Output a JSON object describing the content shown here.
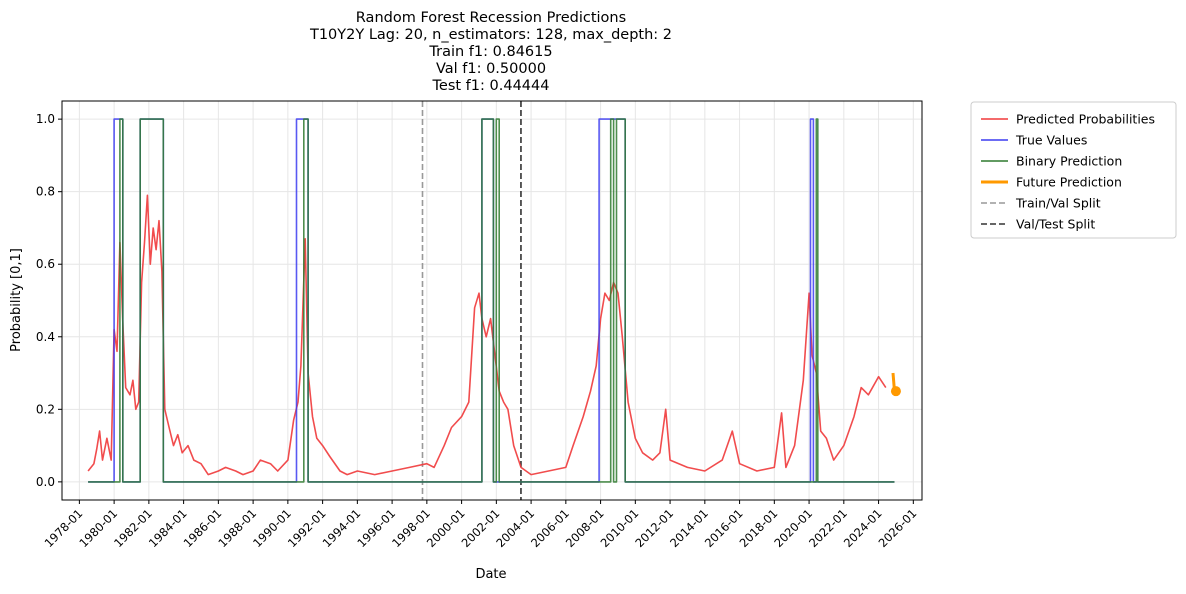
{
  "chart_data": {
    "type": "line",
    "title_lines": [
      "Random Forest Recession Predictions",
      "T10Y2Y Lag: 20, n_estimators: 128, max_depth: 2",
      "Train f1: 0.84615",
      "Val f1: 0.50000",
      "Test f1: 0.44444"
    ],
    "xlabel": "Date",
    "ylabel": "Probability [0,1]",
    "x_ticks": [
      "1978-01",
      "1980-01",
      "1982-01",
      "1984-01",
      "1986-01",
      "1988-01",
      "1990-01",
      "1992-01",
      "1994-01",
      "1996-01",
      "1998-01",
      "2000-01",
      "2002-01",
      "2004-01",
      "2006-01",
      "2008-01",
      "2010-01",
      "2012-01",
      "2014-01",
      "2016-01",
      "2018-01",
      "2020-01",
      "2022-01",
      "2024-01",
      "2026-01"
    ],
    "y_ticks": [
      "0.0",
      "0.2",
      "0.4",
      "0.6",
      "0.8",
      "1.0"
    ],
    "xlim": [
      "1977-01",
      "2026-07"
    ],
    "ylim": [
      -0.05,
      1.05
    ],
    "grid": true,
    "legend_position": "outside-upper-right",
    "legend": [
      {
        "label": "Predicted Probabilities",
        "color": "#f0393a",
        "style": "solid"
      },
      {
        "label": "True Values",
        "color": "#3c3cf0",
        "style": "solid"
      },
      {
        "label": "Binary Prediction",
        "color": "#2f7a2f",
        "style": "solid"
      },
      {
        "label": "Future Prediction",
        "color": "#ff9900",
        "style": "thick"
      },
      {
        "label": "Train/Val Split",
        "color": "#999999",
        "style": "dashed"
      },
      {
        "label": "Val/Test Split",
        "color": "#333333",
        "style": "dashed"
      }
    ],
    "splits": [
      {
        "name": "Train/Val Split",
        "x": "1997-10",
        "color": "#999999"
      },
      {
        "name": "Val/Test Split",
        "x": "2003-06",
        "color": "#333333"
      }
    ],
    "series": [
      {
        "name": "Predicted Probabilities",
        "color": "#f0393a",
        "points": [
          [
            "1978-07",
            0.03
          ],
          [
            "1978-11",
            0.05
          ],
          [
            "1979-01",
            0.09
          ],
          [
            "1979-03",
            0.14
          ],
          [
            "1979-05",
            0.06
          ],
          [
            "1979-08",
            0.12
          ],
          [
            "1979-11",
            0.06
          ],
          [
            "1980-01",
            0.42
          ],
          [
            "1980-03",
            0.36
          ],
          [
            "1980-05",
            0.66
          ],
          [
            "1980-07",
            0.44
          ],
          [
            "1980-09",
            0.26
          ],
          [
            "1980-12",
            0.24
          ],
          [
            "1981-02",
            0.28
          ],
          [
            "1981-04",
            0.2
          ],
          [
            "1981-06",
            0.22
          ],
          [
            "1981-08",
            0.55
          ],
          [
            "1981-10",
            0.66
          ],
          [
            "1981-12",
            0.79
          ],
          [
            "1982-02",
            0.6
          ],
          [
            "1982-04",
            0.7
          ],
          [
            "1982-06",
            0.64
          ],
          [
            "1982-08",
            0.72
          ],
          [
            "1982-10",
            0.58
          ],
          [
            "1982-12",
            0.2
          ],
          [
            "1983-03",
            0.15
          ],
          [
            "1983-06",
            0.1
          ],
          [
            "1983-09",
            0.13
          ],
          [
            "1983-12",
            0.08
          ],
          [
            "1984-04",
            0.1
          ],
          [
            "1984-08",
            0.06
          ],
          [
            "1985-01",
            0.05
          ],
          [
            "1985-06",
            0.02
          ],
          [
            "1986-01",
            0.03
          ],
          [
            "1986-06",
            0.04
          ],
          [
            "1987-01",
            0.03
          ],
          [
            "1987-06",
            0.02
          ],
          [
            "1988-01",
            0.03
          ],
          [
            "1988-06",
            0.06
          ],
          [
            "1989-01",
            0.05
          ],
          [
            "1989-06",
            0.03
          ],
          [
            "1990-01",
            0.06
          ],
          [
            "1990-05",
            0.17
          ],
          [
            "1990-08",
            0.22
          ],
          [
            "1990-10",
            0.32
          ],
          [
            "1991-01",
            0.67
          ],
          [
            "1991-03",
            0.3
          ],
          [
            "1991-06",
            0.18
          ],
          [
            "1991-09",
            0.12
          ],
          [
            "1992-01",
            0.1
          ],
          [
            "1992-06",
            0.07
          ],
          [
            "1993-01",
            0.03
          ],
          [
            "1993-06",
            0.02
          ],
          [
            "1994-01",
            0.03
          ],
          [
            "1995-01",
            0.02
          ],
          [
            "1996-01",
            0.03
          ],
          [
            "1997-01",
            0.04
          ],
          [
            "1998-01",
            0.05
          ],
          [
            "1998-06",
            0.04
          ],
          [
            "1999-01",
            0.1
          ],
          [
            "1999-06",
            0.15
          ],
          [
            "2000-01",
            0.18
          ],
          [
            "2000-06",
            0.22
          ],
          [
            "2000-10",
            0.48
          ],
          [
            "2001-01",
            0.52
          ],
          [
            "2001-03",
            0.45
          ],
          [
            "2001-06",
            0.4
          ],
          [
            "2001-09",
            0.45
          ],
          [
            "2001-12",
            0.35
          ],
          [
            "2002-03",
            0.25
          ],
          [
            "2002-06",
            0.22
          ],
          [
            "2002-09",
            0.2
          ],
          [
            "2003-01",
            0.1
          ],
          [
            "2003-06",
            0.04
          ],
          [
            "2004-01",
            0.02
          ],
          [
            "2005-01",
            0.03
          ],
          [
            "2006-01",
            0.04
          ],
          [
            "2006-06",
            0.1
          ],
          [
            "2007-01",
            0.18
          ],
          [
            "2007-06",
            0.25
          ],
          [
            "2007-10",
            0.32
          ],
          [
            "2008-01",
            0.45
          ],
          [
            "2008-04",
            0.52
          ],
          [
            "2008-07",
            0.5
          ],
          [
            "2008-10",
            0.55
          ],
          [
            "2009-01",
            0.52
          ],
          [
            "2009-04",
            0.4
          ],
          [
            "2009-08",
            0.22
          ],
          [
            "2010-01",
            0.12
          ],
          [
            "2010-06",
            0.08
          ],
          [
            "2011-01",
            0.06
          ],
          [
            "2011-06",
            0.08
          ],
          [
            "2011-10",
            0.2
          ],
          [
            "2012-01",
            0.06
          ],
          [
            "2013-01",
            0.04
          ],
          [
            "2014-01",
            0.03
          ],
          [
            "2015-01",
            0.06
          ],
          [
            "2015-08",
            0.14
          ],
          [
            "2016-01",
            0.05
          ],
          [
            "2017-01",
            0.03
          ],
          [
            "2018-01",
            0.04
          ],
          [
            "2018-06",
            0.19
          ],
          [
            "2018-09",
            0.04
          ],
          [
            "2019-03",
            0.1
          ],
          [
            "2019-09",
            0.28
          ],
          [
            "2020-01",
            0.52
          ],
          [
            "2020-03",
            0.35
          ],
          [
            "2020-06",
            0.3
          ],
          [
            "2020-09",
            0.14
          ],
          [
            "2021-01",
            0.12
          ],
          [
            "2021-06",
            0.06
          ],
          [
            "2022-01",
            0.1
          ],
          [
            "2022-08",
            0.18
          ],
          [
            "2023-01",
            0.26
          ],
          [
            "2023-06",
            0.24
          ],
          [
            "2024-01",
            0.29
          ],
          [
            "2024-06",
            0.26
          ]
        ]
      },
      {
        "name": "True Values",
        "color": "#3c3cf0",
        "points": [
          [
            "1978-07",
            0
          ],
          [
            "1980-01",
            0
          ],
          [
            "1980-01",
            1
          ],
          [
            "1980-07",
            1
          ],
          [
            "1980-07",
            0
          ],
          [
            "1981-07",
            0
          ],
          [
            "1981-07",
            1
          ],
          [
            "1982-11",
            1
          ],
          [
            "1982-11",
            0
          ],
          [
            "1990-07",
            0
          ],
          [
            "1990-07",
            1
          ],
          [
            "1991-03",
            1
          ],
          [
            "1991-03",
            0
          ],
          [
            "2001-03",
            0
          ],
          [
            "2001-03",
            1
          ],
          [
            "2001-11",
            1
          ],
          [
            "2001-11",
            0
          ],
          [
            "2007-12",
            0
          ],
          [
            "2007-12",
            1
          ],
          [
            "2009-06",
            1
          ],
          [
            "2009-06",
            0
          ],
          [
            "2020-02",
            0
          ],
          [
            "2020-02",
            1
          ],
          [
            "2020-04",
            1
          ],
          [
            "2020-04",
            0
          ],
          [
            "2024-12",
            0
          ]
        ]
      },
      {
        "name": "Binary Prediction",
        "color": "#2f7a2f",
        "points": [
          [
            "1978-07",
            0
          ],
          [
            "1980-05",
            0
          ],
          [
            "1980-05",
            1
          ],
          [
            "1980-07",
            1
          ],
          [
            "1980-07",
            0
          ],
          [
            "1981-07",
            0
          ],
          [
            "1981-07",
            1
          ],
          [
            "1982-11",
            1
          ],
          [
            "1982-11",
            0
          ],
          [
            "1990-12",
            0
          ],
          [
            "1990-12",
            1
          ],
          [
            "1991-03",
            1
          ],
          [
            "1991-03",
            0
          ],
          [
            "2001-03",
            0
          ],
          [
            "2001-03",
            1
          ],
          [
            "2001-11",
            1
          ],
          [
            "2001-11",
            0
          ],
          [
            "2002-01",
            0
          ],
          [
            "2002-01",
            1
          ],
          [
            "2002-03",
            1
          ],
          [
            "2002-03",
            0
          ],
          [
            "2008-08",
            0
          ],
          [
            "2008-08",
            1
          ],
          [
            "2008-10",
            1
          ],
          [
            "2008-10",
            0
          ],
          [
            "2008-12",
            0
          ],
          [
            "2008-12",
            1
          ],
          [
            "2009-06",
            1
          ],
          [
            "2009-06",
            0
          ],
          [
            "2020-06",
            0
          ],
          [
            "2020-06",
            1
          ],
          [
            "2020-07",
            1
          ],
          [
            "2020-07",
            0
          ],
          [
            "2024-12",
            0
          ]
        ]
      },
      {
        "name": "Future Prediction",
        "color": "#ff9900",
        "points": [
          [
            "2024-11",
            0.3
          ],
          [
            "2024-12",
            0.25
          ]
        ]
      }
    ],
    "future_point": {
      "x": "2025-01",
      "y": 0.25
    }
  }
}
